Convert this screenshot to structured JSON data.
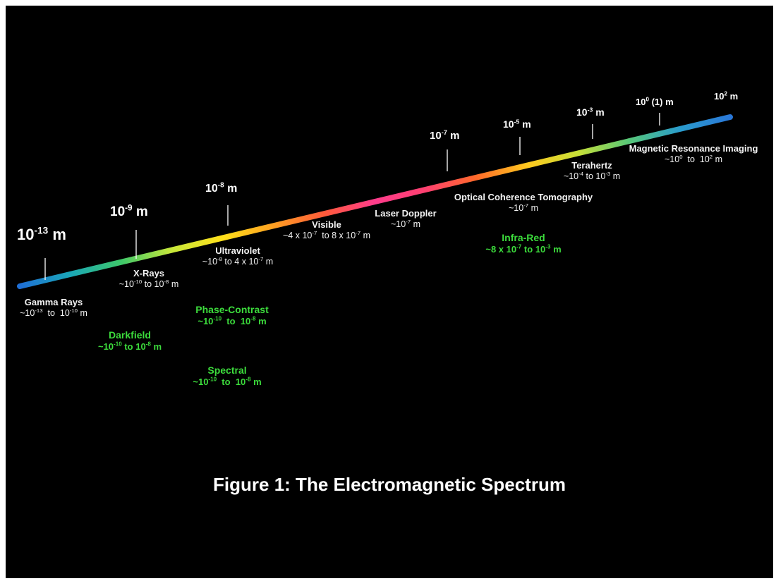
{
  "caption": "Figure 1: The Electromagnetic Spectrum",
  "colors": {
    "background": "#000000",
    "text": "#ffffff",
    "technique": "#3cdc3c",
    "gradient": [
      "#1f6fd6",
      "#1aa7b8",
      "#3ec86a",
      "#c8e83a",
      "#ffe01a",
      "#ffa022",
      "#ff5a3a",
      "#ff3c8c",
      "#ff4070",
      "#ff6a2a",
      "#ffc81e",
      "#c8e038",
      "#58c878",
      "#2a9ccc",
      "#2a78d8"
    ]
  },
  "ticks": [
    {
      "mantissa": "10",
      "exponent": "-13",
      "unit": "m"
    },
    {
      "mantissa": "10",
      "exponent": "-9",
      "unit": "m"
    },
    {
      "mantissa": "10",
      "exponent": "-8",
      "unit": "m"
    },
    {
      "mantissa": "10",
      "exponent": "-7",
      "unit": "m"
    },
    {
      "mantissa": "10",
      "exponent": "-5",
      "unit": "m"
    },
    {
      "mantissa": "10",
      "exponent": "-3",
      "unit": "m"
    },
    {
      "mantissa": "10",
      "exponent": "0",
      "unit": "(1) m"
    },
    {
      "mantissa": "10",
      "exponent": "2",
      "unit": "m"
    }
  ],
  "regions": {
    "gamma": {
      "name": "Gamma Rays",
      "range": {
        "prefix": "~",
        "a": "10",
        "ae": "-13",
        "mid": "to",
        "b": "10",
        "be": "-10",
        "unit": "m"
      }
    },
    "xrays": {
      "name": "X-Rays",
      "range": {
        "prefix": "~",
        "a": "10",
        "ae": "-10",
        "mid": "to",
        "b": "10",
        "be": "-8",
        "unit": "m"
      }
    },
    "ultraviolet": {
      "name": "Ultraviolet",
      "range": {
        "prefix": "~",
        "a": "10",
        "ae": "-8",
        "mid": "to 4 x",
        "b": "10",
        "be": "-7",
        "unit": "m"
      }
    },
    "visible": {
      "name": "Visible",
      "range": {
        "prefix": "~4 x",
        "a": "10",
        "ae": "-7",
        "mid": "to 8 x",
        "b": "10",
        "be": "-7",
        "unit": "m"
      }
    },
    "terahertz": {
      "name": "Terahertz",
      "range": {
        "prefix": "~",
        "a": "10",
        "ae": "-4",
        "mid": "to",
        "b": "10",
        "be": "-3",
        "unit": "m"
      }
    },
    "mri": {
      "name": "Magnetic Resonance Imaging",
      "range": {
        "prefix": "~",
        "a": "10",
        "ae": "0",
        "mid": "to",
        "b": "10",
        "be": "2",
        "unit": "m"
      }
    }
  },
  "techniques": {
    "laser_doppler": {
      "name": "Laser Doppler",
      "range": {
        "prefix": "~",
        "a": "10",
        "ae": "-7",
        "unit": "m"
      }
    },
    "oct": {
      "name": "Optical Coherence Tomography",
      "range": {
        "prefix": "~",
        "a": "10",
        "ae": "-7",
        "unit": "m"
      }
    },
    "infrared": {
      "name": "Infra-Red",
      "range": {
        "prefix": "~8 x",
        "a": "10",
        "ae": "-7",
        "mid": "to",
        "b": "10",
        "be": "-3",
        "unit": "m"
      }
    },
    "phase_contrast": {
      "name": "Phase-Contrast",
      "range": {
        "prefix": "~",
        "a": "10",
        "ae": "-10",
        "mid": "to",
        "b": "10",
        "be": "-8",
        "unit": "m"
      }
    },
    "darkfield": {
      "name": "Darkfield",
      "range": {
        "prefix": "~",
        "a": "10",
        "ae": "-10",
        "mid": "to",
        "b": "10",
        "be": "-8",
        "unit": "m"
      }
    },
    "spectral": {
      "name": "Spectral",
      "range": {
        "prefix": "~",
        "a": "10",
        "ae": "-10",
        "mid": "to",
        "b": "10",
        "be": "-8",
        "unit": "m"
      }
    }
  }
}
